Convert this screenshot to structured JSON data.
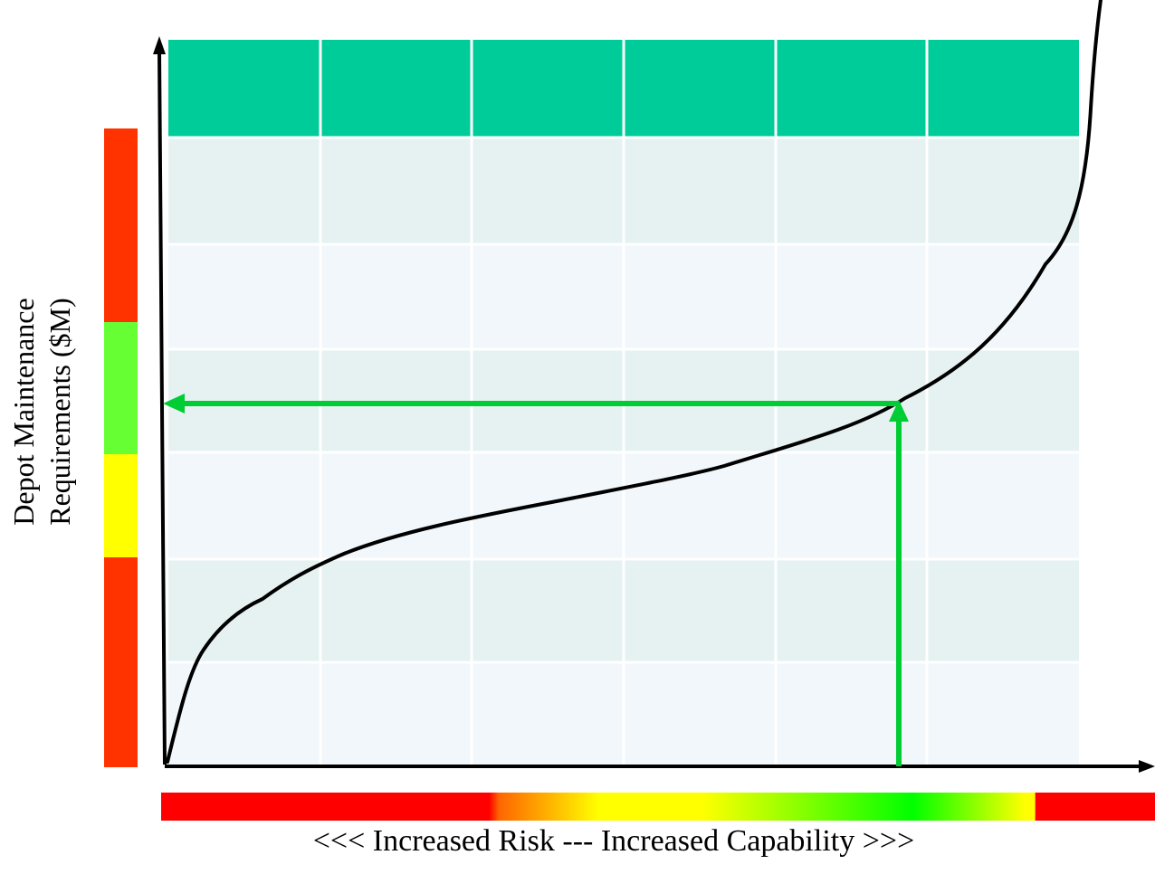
{
  "labels": {
    "y_axis_line1": "Depot Maintenance",
    "y_axis_line2": "Requirements ($M)",
    "x_axis": "<<< Increased Risk --- Increased Capability >>>"
  },
  "colors": {
    "header_band": "#00cc99",
    "row_dark": "#e6f2f2",
    "row_light": "#f1f7fa",
    "gridline": "#ffffff",
    "curve": "#000000",
    "indicator_arrow": "#00cc33",
    "risk_red": "#ff3300",
    "bar_red": "#ff0000",
    "yellow": "#ffff00",
    "green": "#66ff33",
    "bright_green": "#00ff00"
  },
  "y_risk_scale": [
    "red",
    "green",
    "yellow",
    "red"
  ],
  "x_risk_scale": [
    "red",
    "orange",
    "yellow",
    "green",
    "yellow",
    "red"
  ]
}
